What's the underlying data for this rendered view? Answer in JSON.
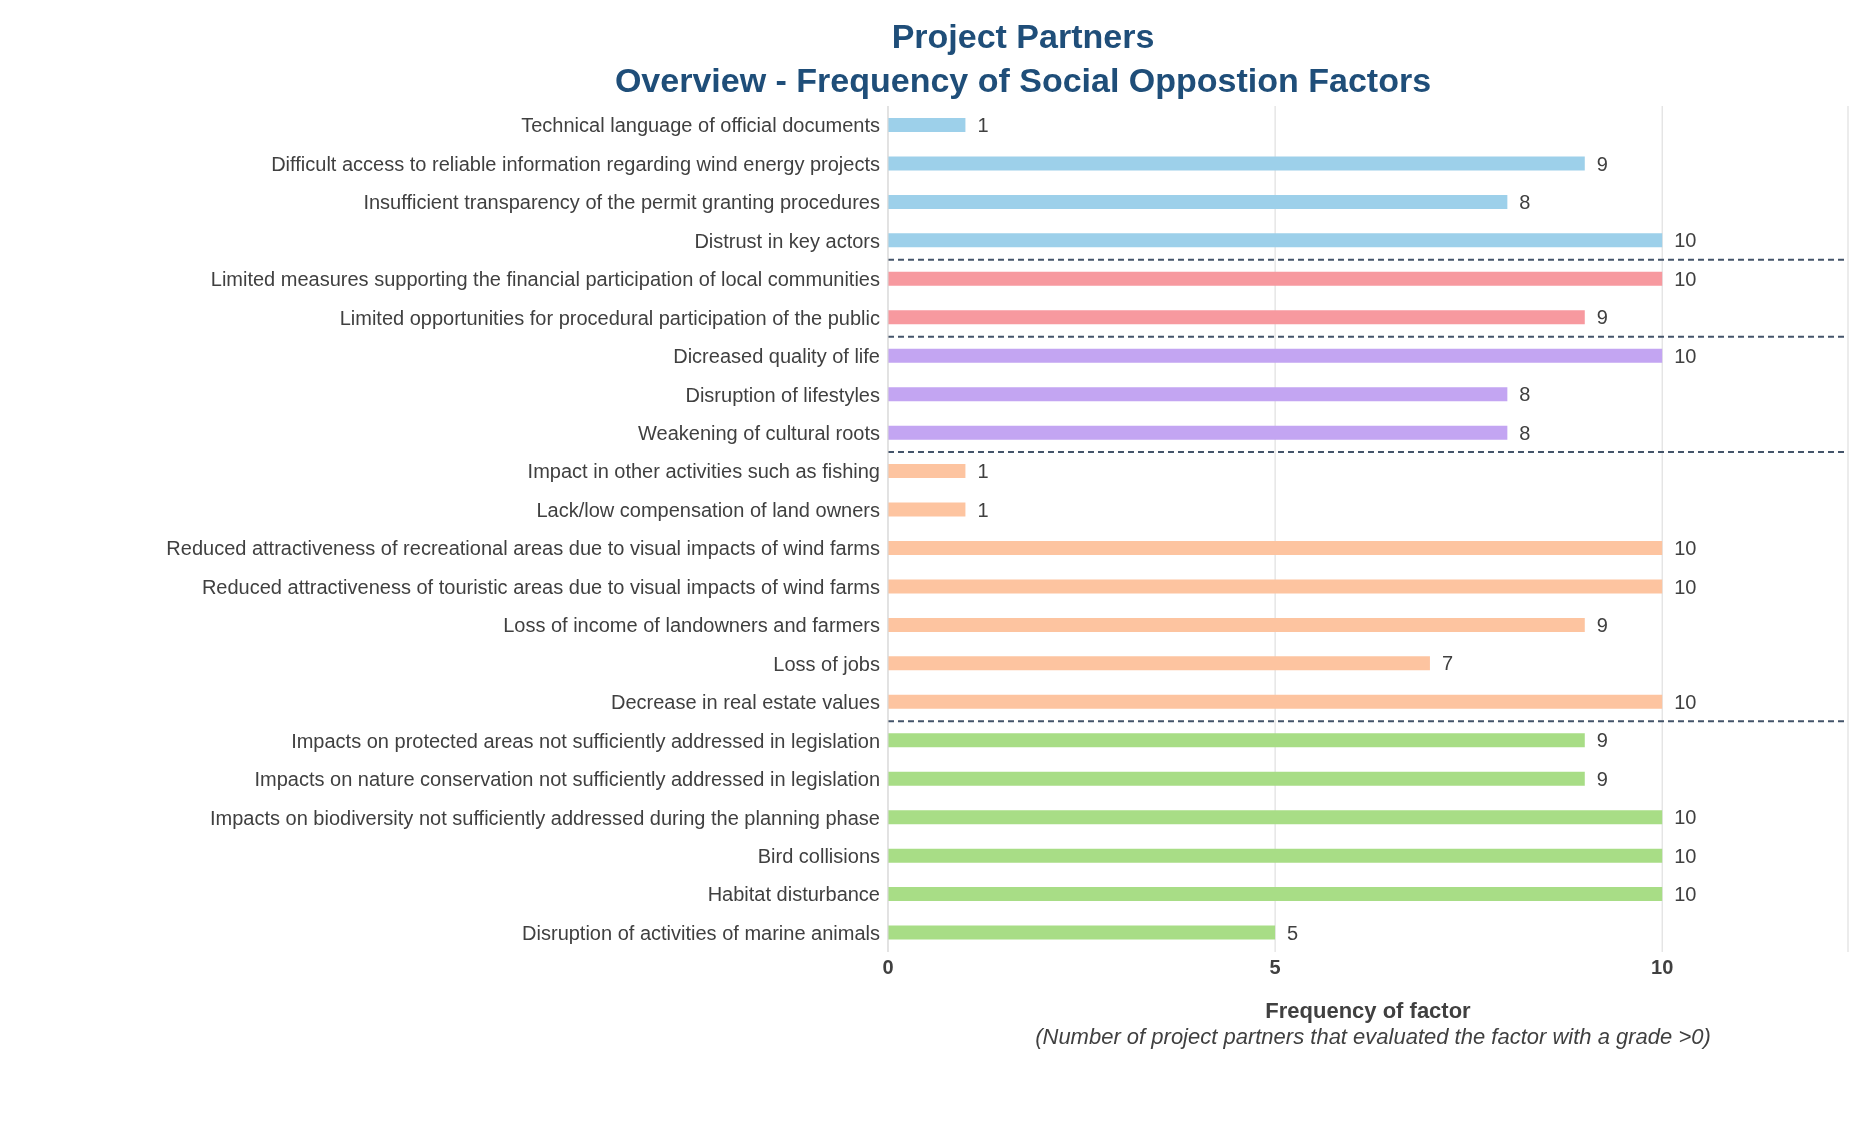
{
  "chart_data": {
    "type": "bar",
    "orientation": "horizontal",
    "title": "Project Partners",
    "subtitle": "Overview - Frequency of Social Oppostion Factors",
    "xlabel": "Frequency of factor",
    "annotations": [
      "(Number of project partners that evaluated the factor with a grade >0)"
    ],
    "categories": [
      "Technical language of official documents",
      "Difficult access to reliable information regarding wind energy projects",
      "Insufficient transparency of the permit granting procedures",
      "Distrust in key actors",
      "Limited measures supporting the financial participation of local communities",
      "Limited opportunities for procedural participation of the public",
      "Dicreased quality of life",
      "Disruption of lifestyles",
      "Weakening of cultural roots",
      "Impact in other activities such as fishing",
      "Lack/low compensation of land owners",
      "Reduced attractiveness of recreational areas due to visual impacts of wind farms",
      "Reduced attractiveness of touristic areas due to visual impacts of wind farms",
      "Loss of income of landowners and farmers",
      "Loss of jobs",
      "Decrease in real estate values",
      "Impacts on protected areas not sufficiently addressed in legislation",
      "Impacts on nature conservation not sufficiently addressed in legislation",
      "Impacts on biodiversity not sufficiently addressed during the planning phase",
      "Bird collisions",
      "Habitat disturbance",
      "Disruption of activities of marine animals"
    ],
    "values": [
      1,
      9,
      8,
      10,
      10,
      9,
      10,
      8,
      8,
      1,
      1,
      10,
      10,
      9,
      7,
      10,
      9,
      9,
      10,
      10,
      10,
      5
    ],
    "colors": [
      "#9dd0ea",
      "#9dd0ea",
      "#9dd0ea",
      "#9dd0ea",
      "#f7999f",
      "#f7999f",
      "#c3a5f2",
      "#c3a5f2",
      "#c3a5f2",
      "#fdc4a0",
      "#fdc4a0",
      "#fdc4a0",
      "#fdc4a0",
      "#fdc4a0",
      "#fdc4a0",
      "#fdc4a0",
      "#a8dd86",
      "#a8dd86",
      "#a8dd86",
      "#a8dd86",
      "#a8dd86",
      "#a8dd86"
    ],
    "xlim": [
      0,
      12.4
    ],
    "xticks": [
      0,
      5,
      10
    ],
    "grid": "x",
    "data_labels": true
  }
}
